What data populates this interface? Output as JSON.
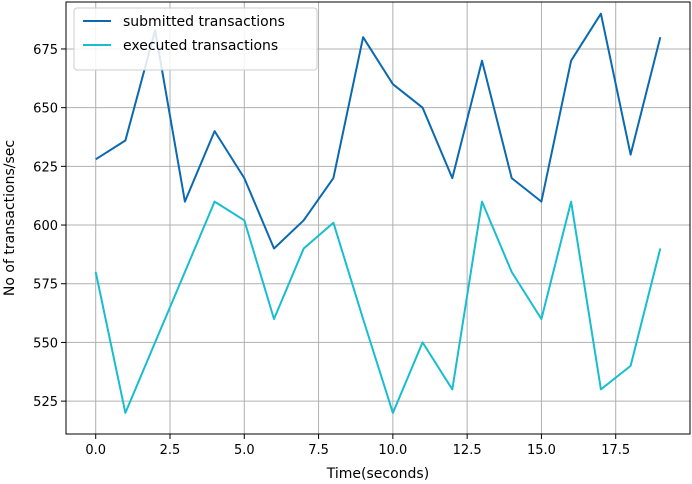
{
  "chart_data": {
    "type": "line",
    "title": "",
    "xlabel": "Time(seconds)",
    "ylabel": "No of transactions/sec",
    "xlim": [
      -1,
      20
    ],
    "ylim": [
      511,
      695
    ],
    "x_ticks": [
      0.0,
      2.5,
      5.0,
      7.5,
      10.0,
      12.5,
      15.0,
      17.5
    ],
    "x_tick_labels": [
      "0.0",
      "2.5",
      "5.0",
      "7.5",
      "10.0",
      "12.5",
      "15.0",
      "17.5"
    ],
    "y_ticks": [
      525,
      550,
      575,
      600,
      625,
      650,
      675
    ],
    "y_tick_labels": [
      "525",
      "550",
      "575",
      "600",
      "625",
      "650",
      "675"
    ],
    "grid": true,
    "legend_position": "top-left",
    "x": [
      0,
      1,
      2,
      3,
      4,
      5,
      6,
      7,
      8,
      9,
      10,
      11,
      12,
      13,
      14,
      15,
      16,
      17,
      18,
      19
    ],
    "series": [
      {
        "name": "submitted transactions",
        "color": "#0a69b0",
        "values": [
          628,
          636,
          683,
          610,
          640,
          620,
          590,
          602,
          620,
          680,
          660,
          650,
          620,
          670,
          620,
          610,
          670,
          690,
          630,
          680
        ]
      },
      {
        "name": "executed transactions",
        "color": "#17becf",
        "values": [
          580,
          520,
          550,
          580,
          610,
          602,
          560,
          590,
          601,
          560,
          520,
          550,
          530,
          610,
          580,
          560,
          610,
          530,
          540,
          590
        ]
      }
    ]
  }
}
